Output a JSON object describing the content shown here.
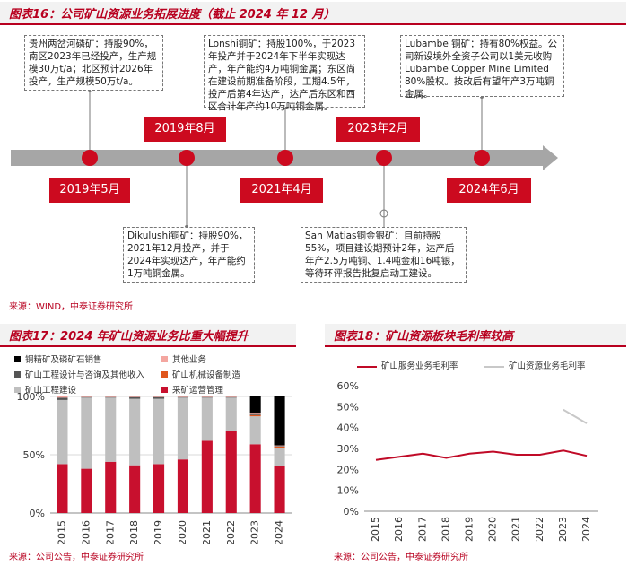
{
  "fig16": {
    "title": "图表16：公司矿山资源业务拓展进度（截止 2024 年 12 月）",
    "dates": [
      "2019年5月",
      "2019年8月",
      "2021年4月",
      "2023年2月",
      "2024年6月"
    ],
    "callouts": [
      "贵州两岔河磷矿：持股90%，南区2023年已经投产，生产规模30万t/a；北区预计2026年投产，生产规模50万t/a。",
      "Dikulushi铜矿：持股90%，2021年12月投产，并于2024年实现达产，年产能约1万吨铜金属。",
      "Lonshi铜矿：持股100%，于2023年投产并于2024年下半年实现达产，年产能约4万吨铜金属；东区尚在建设前期准备阶段，工期4.5年，投产后第4年达产，达产后东区和西区合计年产约10万吨铜金属。",
      "San Matias铜金银矿：目前持股55%，项目建设期预计2年，达产后年产2.5万吨铜、1.4吨金和16吨银，等待环评报告批复启动工建设。",
      "Lubambe 铜矿：持有80%权益。公司新设境外全资子公司以1美元收购Lubambe Copper Mine Limited 80%股权。技改后有望年产3万吨铜金属。"
    ],
    "source": "来源：WIND，中泰证券研究所"
  },
  "fig17": {
    "title": "图表17：2024 年矿山资源业务比重大幅提升",
    "source": "来源：公司公告，中泰证券研究所",
    "legend": [
      {
        "name": "铜精矿及磷矿石销售",
        "color": "#000000"
      },
      {
        "name": "其他业务",
        "color": "#f4a6a0"
      },
      {
        "name": "矿山工程设计与咨询及其他收入",
        "color": "#555555"
      },
      {
        "name": "矿山机械设备制造",
        "color": "#e0561c"
      },
      {
        "name": "矿山工程建设",
        "color": "#bfbfbf"
      },
      {
        "name": "采矿运营管理",
        "color": "#c8102e"
      }
    ]
  },
  "fig18": {
    "title": "图表18：矿山资源板块毛利率较高",
    "source": "来源：公司公告，中泰证券研究所",
    "legend": [
      {
        "name": "矿山服务业务毛利率",
        "color": "#c00a27"
      },
      {
        "name": "矿山资源业务毛利率",
        "color": "#c8c8c8"
      }
    ]
  },
  "chart_data": [
    {
      "type": "bar",
      "stacked": true,
      "title": "图表17：2024 年矿山资源业务比重大幅提升",
      "categories": [
        "2015",
        "2016",
        "2017",
        "2018",
        "2019",
        "2020",
        "2021",
        "2022",
        "2023",
        "2024"
      ],
      "ylim": [
        0,
        100
      ],
      "yticks": [
        "0%",
        "50%",
        "100%"
      ],
      "series": [
        {
          "name": "采矿运营管理",
          "color": "#c8102e",
          "values": [
            42,
            38,
            44,
            41,
            42,
            46,
            62,
            70,
            59,
            40
          ]
        },
        {
          "name": "矿山工程建设",
          "color": "#bfbfbf",
          "values": [
            55,
            61,
            55,
            57,
            56,
            53,
            37,
            29,
            24,
            16
          ]
        },
        {
          "name": "矿山机械设备制造",
          "color": "#e0561c",
          "values": [
            0,
            0,
            0,
            0,
            0,
            0,
            0,
            0,
            1,
            1
          ]
        },
        {
          "name": "矿山工程设计与咨询及其他收入",
          "color": "#555555",
          "values": [
            2,
            0.5,
            0.5,
            1.5,
            1.5,
            0.5,
            0.5,
            0.5,
            1,
            0.5
          ]
        },
        {
          "name": "其他业务",
          "color": "#f4a6a0",
          "values": [
            1,
            0.5,
            0.5,
            0.5,
            0.5,
            0.5,
            0.5,
            0.5,
            1,
            0.5
          ]
        },
        {
          "name": "铜精矿及磷矿石销售",
          "color": "#000000",
          "values": [
            0,
            0,
            0,
            0,
            0,
            0,
            0,
            0,
            14,
            42
          ]
        }
      ],
      "grid": true
    },
    {
      "type": "line",
      "title": "图表18：矿山资源板块毛利率较高",
      "categories": [
        "2015",
        "2016",
        "2017",
        "2018",
        "2019",
        "2020",
        "2021",
        "2022",
        "2023",
        "2024"
      ],
      "ylim": [
        0,
        60
      ],
      "yticks": [
        "0%",
        "10%",
        "20%",
        "30%",
        "40%",
        "50%",
        "60%"
      ],
      "series": [
        {
          "name": "矿山服务业务毛利率",
          "color": "#c00a27",
          "values": [
            24.5,
            26,
            27.5,
            25.5,
            27.5,
            28.5,
            27,
            27,
            29,
            26.5
          ]
        },
        {
          "name": "矿山资源业务毛利率",
          "color": "#c8c8c8",
          "values": [
            null,
            null,
            null,
            null,
            null,
            null,
            null,
            null,
            48.5,
            42
          ]
        }
      ],
      "legend_position": "top",
      "grid": false
    }
  ]
}
